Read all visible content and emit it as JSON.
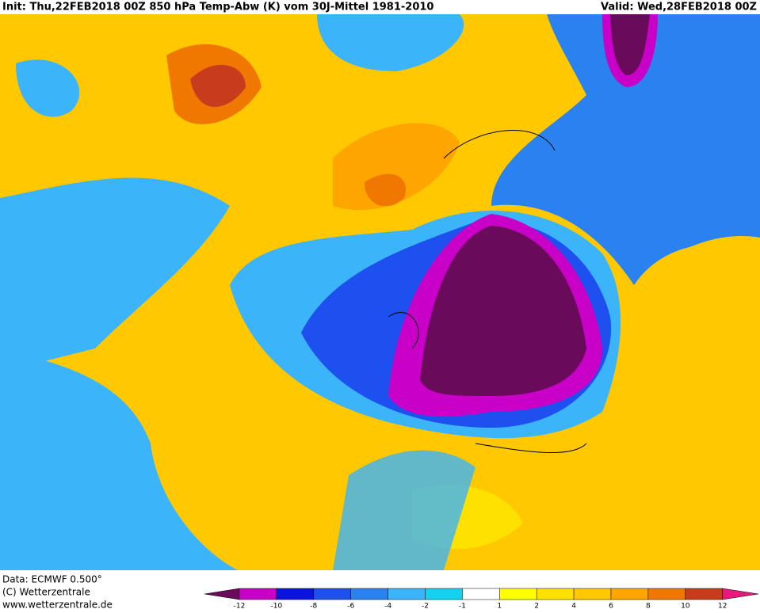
{
  "header": {
    "title": "Init: Thu,22FEB2018 00Z 850 hPa Temp-Abw (K) vom 30J-Mittel 1981-2010",
    "valid": "Valid: Wed,28FEB2018 00Z"
  },
  "footer": {
    "data": "Data: ECMWF  0.500°",
    "copyright": "(C) Wetterzentrale",
    "url": "www.wetterzentrale.de"
  },
  "colorbar": {
    "ticks": [
      -12,
      -10,
      -8,
      -6,
      -4,
      -2,
      -1,
      1,
      2,
      4,
      6,
      8,
      10,
      12
    ],
    "colors": [
      "#6a0a5a",
      "#c800c8",
      "#0a14dc",
      "#1e50f0",
      "#2a82f0",
      "#3cb4fa",
      "#14d2ee",
      "#ffffff",
      "#ffff00",
      "#ffe100",
      "#ffc800",
      "#ffa500",
      "#f07800",
      "#c83c1e",
      "#e6197d"
    ]
  }
}
